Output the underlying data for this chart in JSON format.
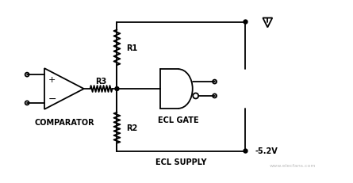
{
  "bg_color": "#ffffff",
  "line_color": "#000000",
  "labels": {
    "comparator": "COMPARATOR",
    "ecl_gate": "ECL GATE",
    "ecl_supply": "ECL SUPPLY",
    "r1": "R1",
    "r2": "R2",
    "r3": "R3",
    "voltage": "-5.2V"
  },
  "figsize": [
    4.45,
    2.32
  ],
  "dpi": 100
}
